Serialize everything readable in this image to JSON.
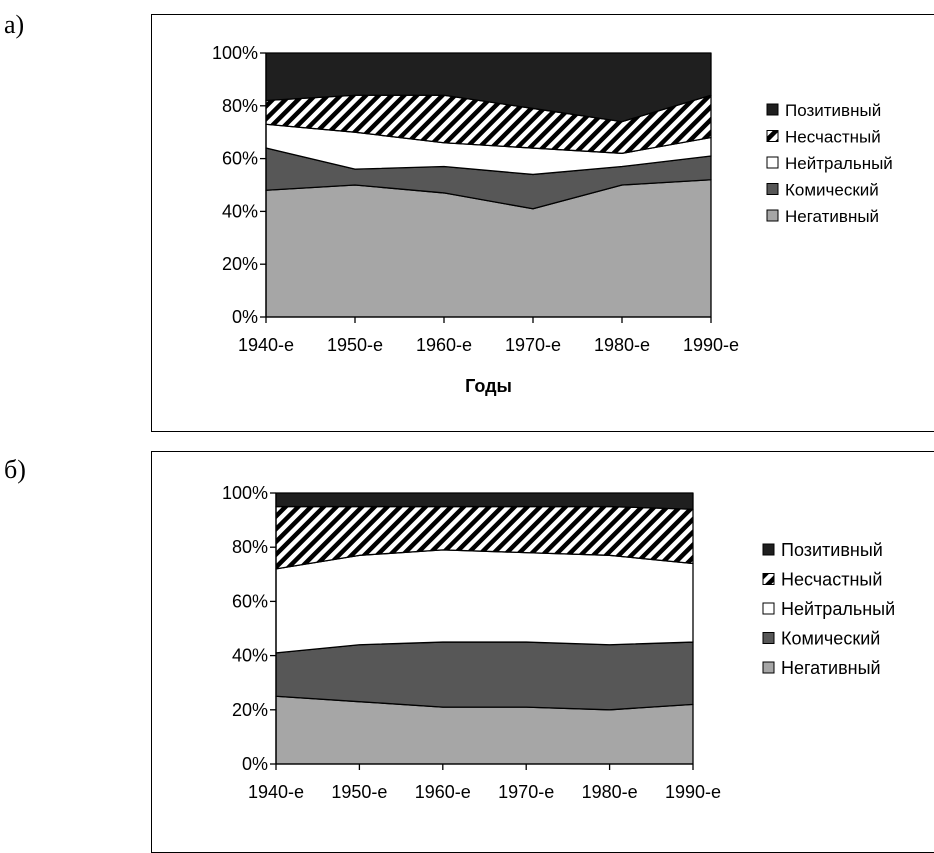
{
  "panels": [
    {
      "letter": "а)"
    },
    {
      "letter": "б)"
    }
  ],
  "colors": {
    "Позитивный": "#1f1f1f",
    "Несчастный": "hatch",
    "Нейтральный": "#ffffff",
    "Комический": "#575757",
    "Негативный": "#a6a6a6"
  },
  "chart_data": [
    {
      "type": "area",
      "stacked": "percent",
      "categories": [
        "1940-е",
        "1950-е",
        "1960-е",
        "1970-е",
        "1980-е",
        "1990-е"
      ],
      "series": [
        {
          "name": "Негативный",
          "values": [
            48,
            50,
            47,
            41,
            50,
            52
          ]
        },
        {
          "name": "Комический",
          "values": [
            16,
            6,
            10,
            13,
            7,
            9
          ]
        },
        {
          "name": "Нейтральный",
          "values": [
            9,
            14,
            9,
            10,
            5,
            7
          ]
        },
        {
          "name": "Несчастный",
          "values": [
            9,
            14,
            18,
            15,
            12,
            16
          ]
        },
        {
          "name": "Позитивный",
          "values": [
            18,
            16,
            16,
            21,
            26,
            16
          ]
        }
      ],
      "legend": [
        "Позитивный",
        "Несчастный",
        "Нейтральный",
        "Комический",
        "Негативный"
      ],
      "legend_position": "right",
      "xlabel": "Годы",
      "ylabel": "",
      "yticks": [
        "0%",
        "20%",
        "40%",
        "60%",
        "80%",
        "100%"
      ],
      "ylim": [
        0,
        100
      ],
      "grid": false
    },
    {
      "type": "area",
      "stacked": "percent",
      "categories": [
        "1940-е",
        "1950-е",
        "1960-е",
        "1970-е",
        "1980-е",
        "1990-е"
      ],
      "series": [
        {
          "name": "Негативный",
          "values": [
            25,
            23,
            21,
            21,
            20,
            22
          ]
        },
        {
          "name": "Комический",
          "values": [
            16,
            21,
            24,
            24,
            24,
            23
          ]
        },
        {
          "name": "Нейтральный",
          "values": [
            31,
            33,
            34,
            33,
            33,
            29
          ]
        },
        {
          "name": "Несчастный",
          "values": [
            23,
            18,
            16,
            17,
            18,
            20
          ]
        },
        {
          "name": "Позитивный",
          "values": [
            5,
            5,
            5,
            5,
            5,
            6
          ]
        }
      ],
      "legend": [
        "Позитивный",
        "Несчастный",
        "Нейтральный",
        "Комический",
        "Негативный"
      ],
      "legend_position": "right",
      "xlabel": "",
      "ylabel": "",
      "yticks": [
        "0%",
        "20%",
        "40%",
        "60%",
        "80%",
        "100%"
      ],
      "ylim": [
        0,
        100
      ],
      "grid": false
    }
  ]
}
